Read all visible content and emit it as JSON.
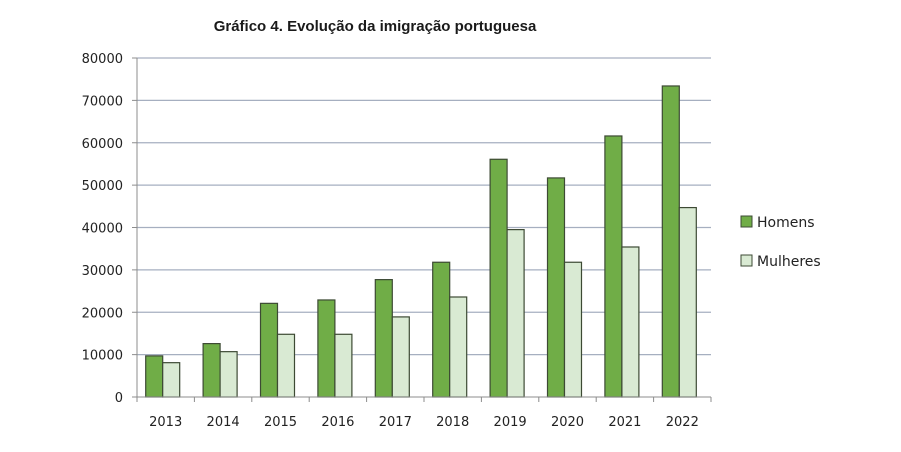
{
  "chart_data": {
    "type": "bar",
    "title": "Gráfico 4. Evolução da imigração portuguesa",
    "xlabel": "",
    "ylabel": "",
    "categories": [
      "2013",
      "2014",
      "2015",
      "2016",
      "2017",
      "2018",
      "2019",
      "2020",
      "2021",
      "2022"
    ],
    "series": [
      {
        "name": "Homens",
        "color": "#70ad47",
        "values": [
          9700,
          12600,
          22100,
          22900,
          27700,
          31800,
          56100,
          51700,
          61600,
          73400
        ]
      },
      {
        "name": "Mulheres",
        "color": "#d9ead3",
        "values": [
          8100,
          10700,
          14800,
          14800,
          18900,
          23600,
          39500,
          31800,
          35400,
          44700
        ]
      }
    ],
    "ylim": [
      0,
      80000
    ],
    "yticks": [
      "0",
      "10000",
      "20000",
      "30000",
      "40000",
      "50000",
      "60000",
      "70000",
      "80000"
    ],
    "grid": true,
    "legend_position": "right"
  }
}
